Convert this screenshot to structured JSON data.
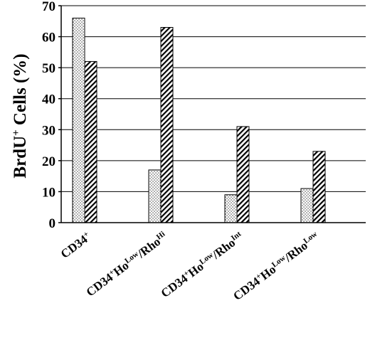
{
  "chart_data": {
    "type": "bar",
    "ylabel_main": "BrdU",
    "ylabel_sup": "+",
    "ylabel_rest": " Cells (%)",
    "xlabel": "",
    "ylim": [
      0,
      70
    ],
    "yticks": [
      "0",
      "10",
      "20",
      "30",
      "40",
      "50",
      "60",
      "70"
    ],
    "grid": "horizontal",
    "categories": [
      {
        "parts": [
          {
            "t": "CD34"
          },
          {
            "t": "+",
            "sup": true
          }
        ]
      },
      {
        "parts": [
          {
            "t": "CD34"
          },
          {
            "t": "+",
            "sup": true
          },
          {
            "t": "Ho"
          },
          {
            "t": "Low",
            "sup": true
          },
          {
            "t": "/Rho"
          },
          {
            "t": "Hi",
            "sup": true
          }
        ]
      },
      {
        "parts": [
          {
            "t": "CD34"
          },
          {
            "t": "+",
            "sup": true
          },
          {
            "t": "Ho"
          },
          {
            "t": "Low",
            "sup": true
          },
          {
            "t": "/Rho"
          },
          {
            "t": "Int",
            "sup": true
          }
        ]
      },
      {
        "parts": [
          {
            "t": "CD34"
          },
          {
            "t": "+",
            "sup": true
          },
          {
            "t": "Ho"
          },
          {
            "t": "Low",
            "sup": true
          },
          {
            "t": "/Rho"
          },
          {
            "t": "Low",
            "sup": true
          }
        ]
      }
    ],
    "series": [
      {
        "pattern": "dots",
        "values": [
          66,
          17,
          9,
          11
        ]
      },
      {
        "pattern": "diagonal-hatch",
        "values": [
          52,
          63,
          31,
          23
        ]
      }
    ],
    "colors": {
      "bar_stroke": "#000000",
      "grid": "#000000",
      "background": "#ffffff"
    }
  }
}
